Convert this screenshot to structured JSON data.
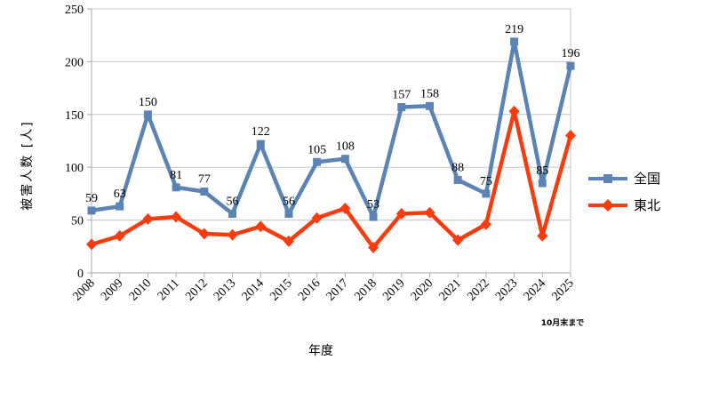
{
  "chart_data": {
    "type": "line",
    "title": "",
    "xlabel": "年度",
    "ylabel": "被害人数 [人]",
    "categories": [
      "2008",
      "2009",
      "2010",
      "2011",
      "2012",
      "2013",
      "2014",
      "2015",
      "2016",
      "2017",
      "2018",
      "2019",
      "2020",
      "2021",
      "2022",
      "2023",
      "2024",
      "2025"
    ],
    "series": [
      {
        "name": "全国",
        "color": "#5B84B4",
        "marker": "square",
        "show_data_labels": true,
        "values": [
          59,
          63,
          150,
          81,
          77,
          56,
          122,
          56,
          105,
          108,
          53,
          157,
          158,
          88,
          75,
          219,
          85,
          196
        ]
      },
      {
        "name": "東北",
        "color": "#F93B0D",
        "marker": "diamond",
        "show_data_labels": false,
        "values": [
          27,
          35,
          51,
          53,
          37,
          36,
          44,
          30,
          52,
          61,
          24,
          56,
          57,
          31,
          46,
          153,
          35,
          130
        ]
      }
    ],
    "ylim": [
      0,
      250
    ],
    "yticks": [
      0,
      50,
      100,
      150,
      200,
      250
    ],
    "grid": true,
    "legend_position": "right",
    "annotation": "10月末まで",
    "colors": {
      "gridline": "#C6C6C6",
      "axis": "#ABABAB",
      "text": "#000000",
      "background": "#FFFFFF"
    }
  }
}
